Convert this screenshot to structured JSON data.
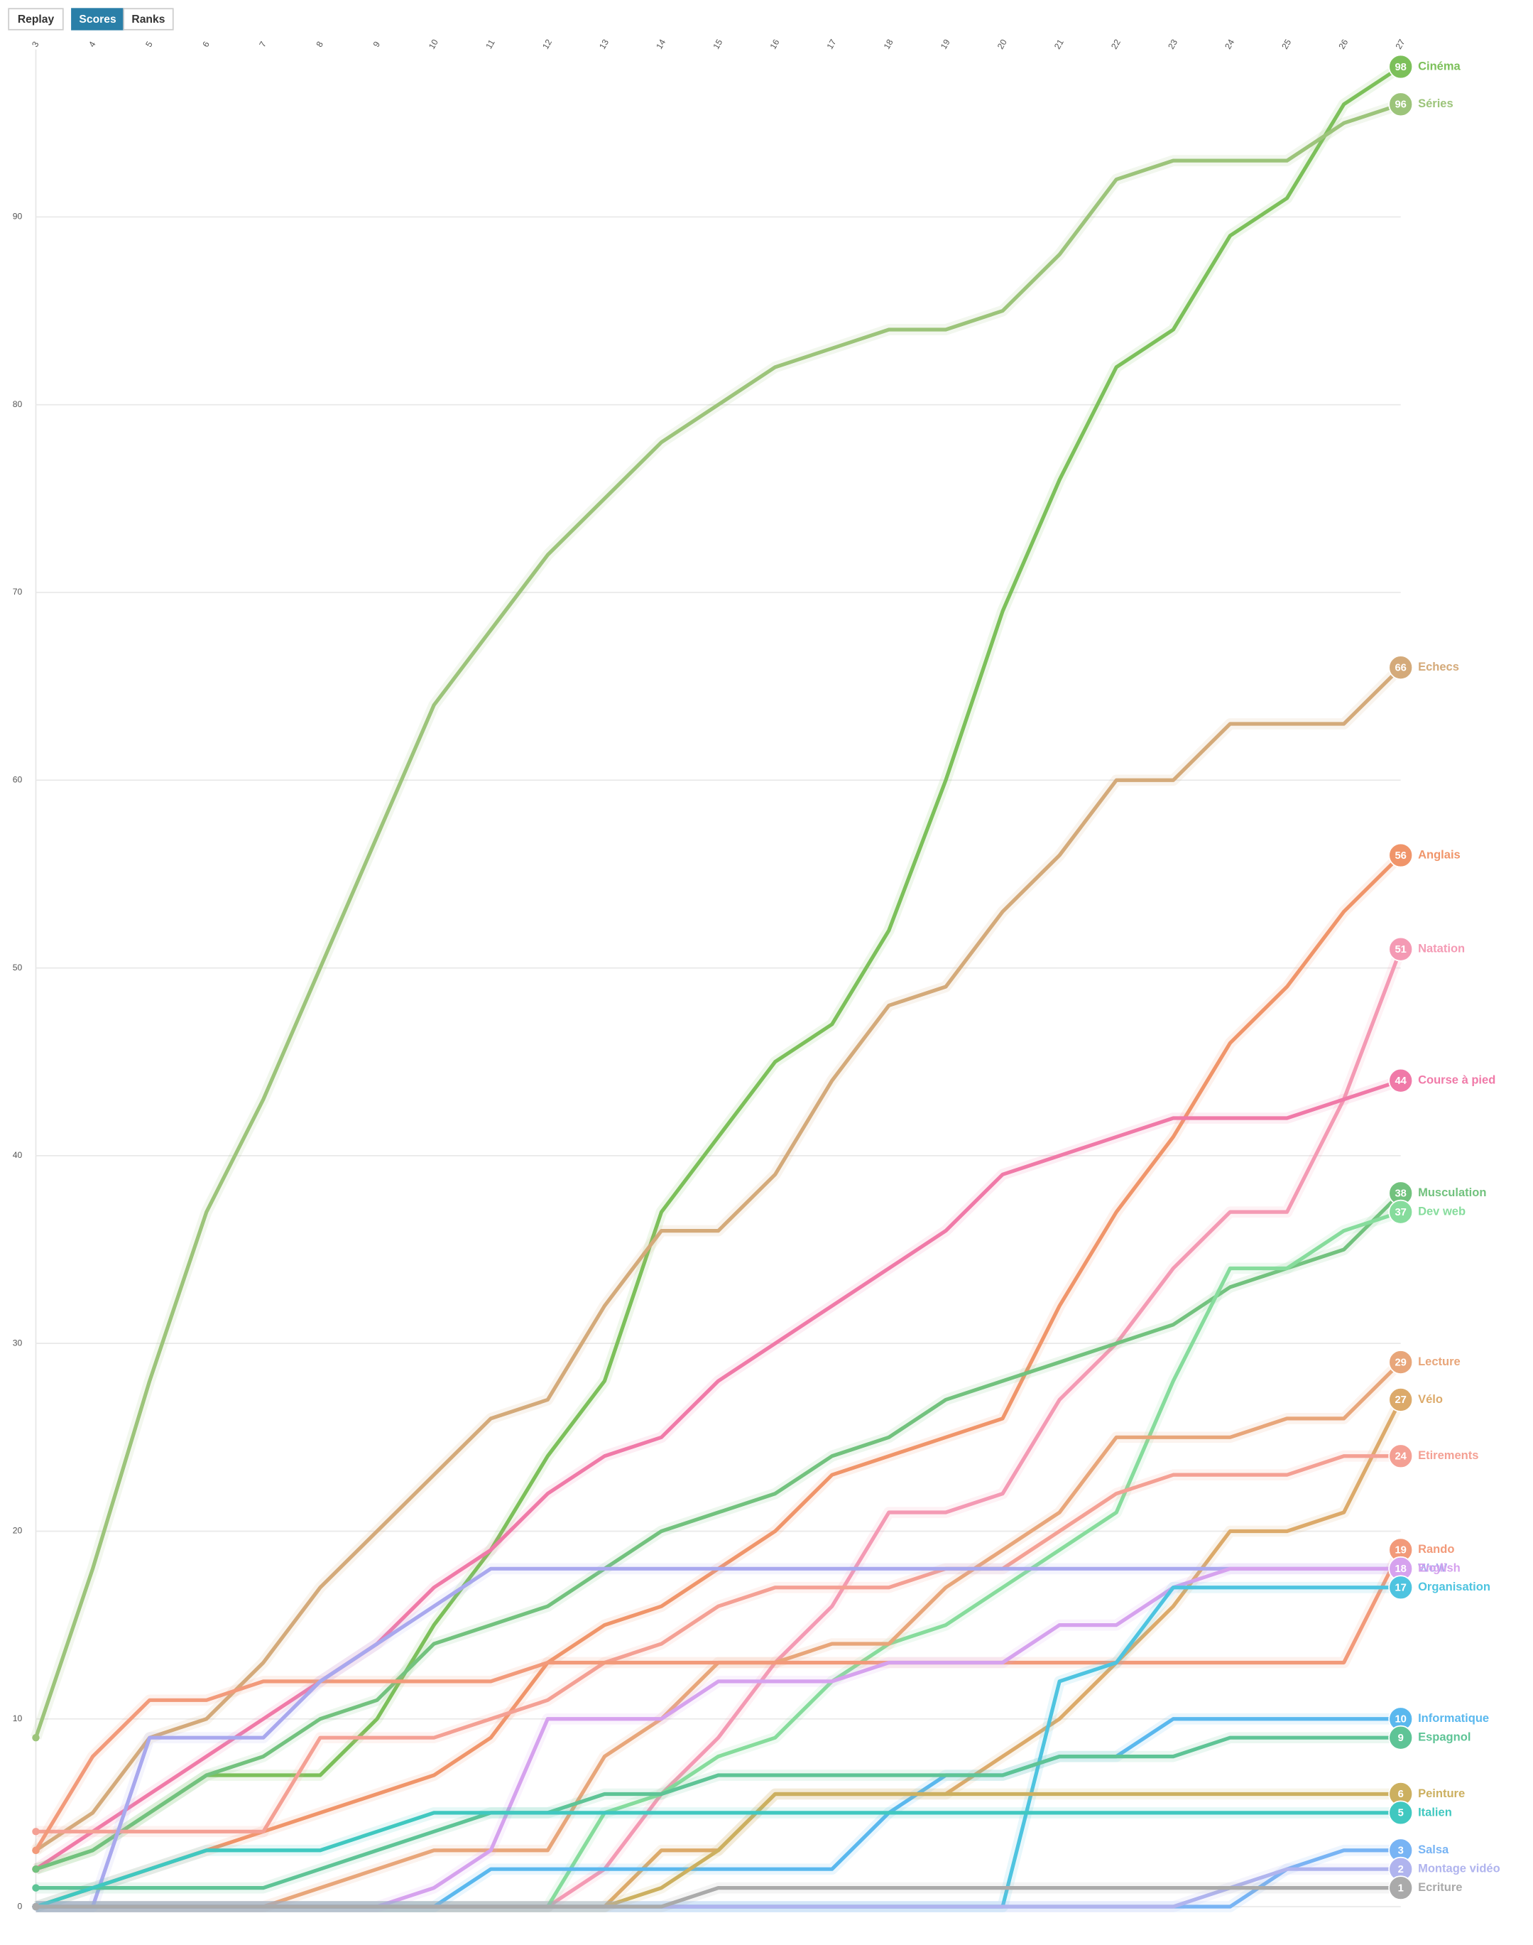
{
  "ui": {
    "buttons": [
      "Replay",
      "Scores",
      "Ranks"
    ],
    "active": "Scores"
  },
  "chart_data": {
    "type": "line",
    "x": [
      3,
      4,
      5,
      6,
      7,
      8,
      9,
      10,
      11,
      12,
      13,
      14,
      15,
      16,
      17,
      18,
      19,
      20,
      21,
      22,
      23,
      24,
      25,
      26,
      27
    ],
    "xlim": [
      3,
      27
    ],
    "xticks": [
      3,
      4,
      5,
      6,
      7,
      8,
      9,
      10,
      11,
      12,
      13,
      14,
      15,
      16,
      17,
      18,
      19,
      20,
      21,
      22,
      23,
      24,
      25,
      26,
      27
    ],
    "ylim": [
      0,
      98
    ],
    "yticks": [
      0,
      10,
      20,
      30,
      40,
      50,
      60,
      70,
      80,
      90
    ],
    "grid": true,
    "series": [
      {
        "name": "Cinéma",
        "color": "#7cc05a",
        "values": [
          2,
          3,
          5,
          7,
          7,
          7,
          10,
          15,
          19,
          24,
          28,
          37,
          41,
          45,
          47,
          52,
          60,
          69,
          76,
          82,
          84,
          89,
          91,
          96,
          98
        ]
      },
      {
        "name": "Séries",
        "color": "#9cc47a",
        "values": [
          9,
          18,
          28,
          37,
          43,
          50,
          57,
          64,
          68,
          72,
          75,
          78,
          80,
          82,
          83,
          84,
          84,
          85,
          88,
          92,
          93,
          93,
          93,
          95,
          96
        ]
      },
      {
        "name": "Echecs",
        "color": "#d4aa7a",
        "values": [
          3,
          5,
          9,
          10,
          13,
          17,
          20,
          23,
          26,
          27,
          32,
          36,
          36,
          39,
          44,
          48,
          49,
          53,
          56,
          60,
          60,
          63,
          63,
          63,
          66
        ]
      },
      {
        "name": "Anglais",
        "color": "#f0956a",
        "values": [
          0,
          1,
          2,
          3,
          4,
          5,
          6,
          7,
          9,
          13,
          15,
          16,
          18,
          20,
          23,
          24,
          25,
          26,
          32,
          37,
          41,
          46,
          49,
          53,
          56
        ]
      },
      {
        "name": "Natation",
        "color": "#f49ab4",
        "values": [
          0,
          0,
          0,
          0,
          0,
          0,
          0,
          0,
          0,
          0,
          2,
          6,
          9,
          13,
          16,
          21,
          21,
          22,
          27,
          30,
          34,
          37,
          37,
          43,
          51
        ]
      },
      {
        "name": "Course à pied",
        "color": "#f07aa8",
        "values": [
          2,
          4,
          6,
          8,
          10,
          12,
          14,
          17,
          19,
          22,
          24,
          25,
          28,
          30,
          32,
          34,
          36,
          39,
          40,
          41,
          42,
          42,
          42,
          43,
          44
        ]
      },
      {
        "name": "Musculation",
        "color": "#72c27e",
        "values": [
          2,
          3,
          5,
          7,
          8,
          10,
          11,
          14,
          15,
          16,
          18,
          20,
          21,
          22,
          24,
          25,
          27,
          28,
          29,
          30,
          31,
          33,
          34,
          35,
          38
        ]
      },
      {
        "name": "Dev web",
        "color": "#86dc9c",
        "values": [
          0,
          0,
          0,
          0,
          0,
          0,
          0,
          0,
          0,
          0,
          5,
          6,
          8,
          9,
          12,
          14,
          15,
          17,
          19,
          21,
          28,
          34,
          34,
          36,
          37
        ]
      },
      {
        "name": "Lecture",
        "color": "#e8a67a",
        "values": [
          0,
          0,
          0,
          0,
          0,
          1,
          2,
          3,
          3,
          3,
          8,
          10,
          13,
          13,
          14,
          14,
          17,
          19,
          21,
          25,
          25,
          25,
          26,
          26,
          29
        ]
      },
      {
        "name": "Vélo",
        "color": "#dcaa6a",
        "values": [
          0,
          0,
          0,
          0,
          0,
          0,
          0,
          0,
          0,
          0,
          0,
          3,
          3,
          6,
          6,
          6,
          6,
          8,
          10,
          13,
          16,
          20,
          20,
          21,
          27
        ]
      },
      {
        "name": "Etirements",
        "color": "#f4a094",
        "values": [
          4,
          4,
          4,
          4,
          4,
          9,
          9,
          9,
          10,
          11,
          13,
          14,
          16,
          17,
          17,
          17,
          18,
          18,
          20,
          22,
          23,
          23,
          23,
          24,
          24
        ]
      },
      {
        "name": "Rando",
        "color": "#f29a7a",
        "values": [
          3,
          8,
          11,
          11,
          12,
          12,
          12,
          12,
          12,
          13,
          13,
          13,
          13,
          13,
          13,
          13,
          13,
          13,
          13,
          13,
          13,
          13,
          13,
          13,
          19
        ]
      },
      {
        "name": "WoW",
        "color": "#a9a8ee",
        "values": [
          0,
          0,
          9,
          9,
          9,
          12,
          14,
          16,
          18,
          18,
          18,
          18,
          18,
          18,
          18,
          18,
          18,
          18,
          18,
          18,
          18,
          18,
          18,
          18,
          18
        ]
      },
      {
        "name": "English",
        "color": "#d6a2ee",
        "values": [
          0,
          0,
          0,
          0,
          0,
          0,
          0,
          1,
          3,
          10,
          10,
          10,
          12,
          12,
          12,
          13,
          13,
          13,
          15,
          15,
          17,
          18,
          18,
          18,
          18
        ]
      },
      {
        "name": "Organisation",
        "color": "#4ec4e0",
        "values": [
          0,
          0,
          0,
          0,
          0,
          0,
          0,
          0,
          0,
          0,
          0,
          0,
          0,
          0,
          0,
          0,
          0,
          0,
          12,
          13,
          17,
          17,
          17,
          17,
          17
        ]
      },
      {
        "name": "Informatique",
        "color": "#5ab8ee",
        "values": [
          0,
          0,
          0,
          0,
          0,
          0,
          0,
          0,
          2,
          2,
          2,
          2,
          2,
          2,
          2,
          5,
          7,
          7,
          8,
          8,
          10,
          10,
          10,
          10,
          10
        ]
      },
      {
        "name": "Espagnol",
        "color": "#5ec496",
        "values": [
          1,
          1,
          1,
          1,
          1,
          2,
          3,
          4,
          5,
          5,
          6,
          6,
          7,
          7,
          7,
          7,
          7,
          7,
          8,
          8,
          8,
          9,
          9,
          9,
          9
        ]
      },
      {
        "name": "Peinture",
        "color": "#ccb060",
        "values": [
          0,
          0,
          0,
          0,
          0,
          0,
          0,
          0,
          0,
          0,
          0,
          1,
          3,
          6,
          6,
          6,
          6,
          6,
          6,
          6,
          6,
          6,
          6,
          6,
          6
        ]
      },
      {
        "name": "Italien",
        "color": "#40c8c0",
        "values": [
          0,
          1,
          2,
          3,
          3,
          3,
          4,
          5,
          5,
          5,
          5,
          5,
          5,
          5,
          5,
          5,
          5,
          5,
          5,
          5,
          5,
          5,
          5,
          5,
          5
        ]
      },
      {
        "name": "Salsa",
        "color": "#78b4f4",
        "values": [
          0,
          0,
          0,
          0,
          0,
          0,
          0,
          0,
          0,
          0,
          0,
          0,
          0,
          0,
          0,
          0,
          0,
          0,
          0,
          0,
          0,
          0,
          2,
          3,
          3
        ]
      },
      {
        "name": "Montage vidéo",
        "color": "#b0b4ee",
        "values": [
          0,
          0,
          0,
          0,
          0,
          0,
          0,
          0,
          0,
          0,
          0,
          0,
          0,
          0,
          0,
          0,
          0,
          0,
          0,
          0,
          0,
          1,
          2,
          2,
          2
        ]
      },
      {
        "name": "Ecriture",
        "color": "#aaaaaa",
        "values": [
          0,
          0,
          0,
          0,
          0,
          0,
          0,
          0,
          0,
          0,
          0,
          0,
          1,
          1,
          1,
          1,
          1,
          1,
          1,
          1,
          1,
          1,
          1,
          1,
          1
        ]
      }
    ]
  }
}
